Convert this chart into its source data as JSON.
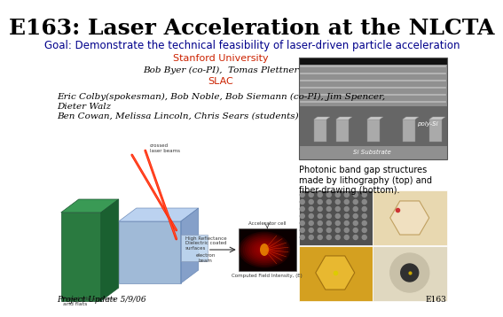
{
  "background_color": "#ffffff",
  "title": "E163: Laser Acceleration at the NLCTA",
  "title_fontsize": 18,
  "title_color": "#000000",
  "goal_text": "Goal: Demonstrate the technical feasibility of laser-driven particle acceleration",
  "goal_color": "#00008B",
  "goal_fontsize": 8.5,
  "stanford_text": "Stanford University",
  "stanford_color": "#CC2200",
  "stanford_fontsize": 8,
  "byer_text": "Bob Byer (co-PI),  Tomas Plettner",
  "byer_fontsize": 7.5,
  "slac_text": "SLAC",
  "slac_color": "#CC2200",
  "slac_fontsize": 8,
  "eric_text": "Eric Colby(spokesman), Bob Noble, Bob Siemann (co-PI), Jim Spencer,\nDieter Walz",
  "eric_fontsize": 7.5,
  "students_text": "Ben Cowan, Melissa Lincoln, Chris Sears (students)",
  "students_fontsize": 7.5,
  "photonic_text": "Photonic band gap structures\nmade by lithography (top) and\nfiber-drawing (bottom).",
  "photonic_fontsize": 7,
  "footer_left": "Project Update 5/9/06",
  "footer_right": "E163",
  "footer_fontsize": 6.5,
  "footer_color": "#000000",
  "sem_top_color": "#888888",
  "sem_mid_color": "#aaaaaa",
  "sem_dark_color": "#444444"
}
